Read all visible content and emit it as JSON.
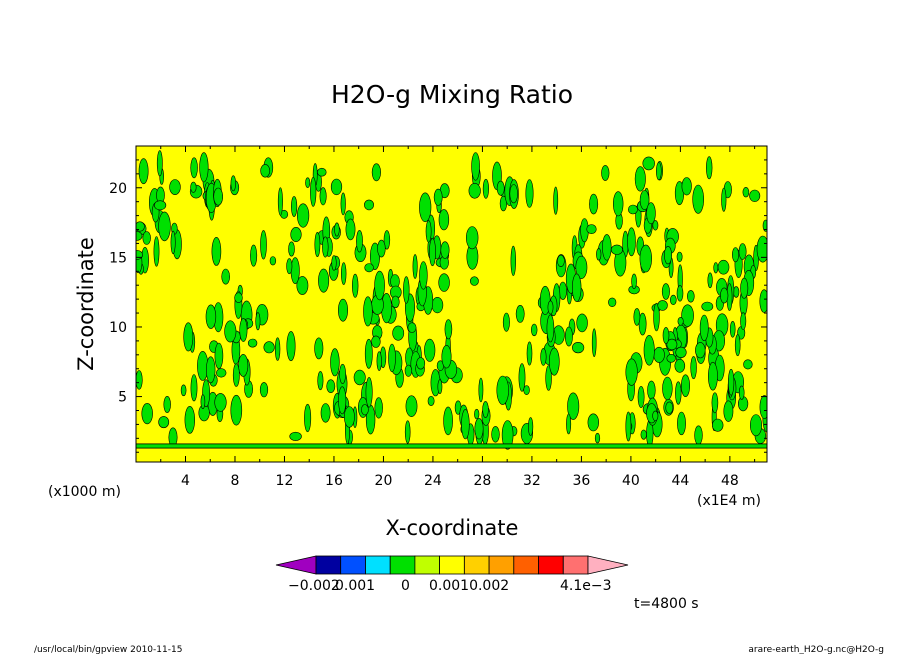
{
  "chart_data": {
    "type": "heatmap",
    "title": "H2O-g Mixing Ratio",
    "xlabel": "X-coordinate",
    "ylabel": "Z-coordinate",
    "x_unit": "(x1E4 m)",
    "y_unit": "(x1000 m)",
    "xlim": [
      0,
      51
    ],
    "ylim": [
      0.3,
      23
    ],
    "x_ticks": [
      "4",
      "8",
      "12",
      "16",
      "20",
      "24",
      "28",
      "32",
      "36",
      "40",
      "44",
      "48"
    ],
    "y_ticks": [
      "5",
      "10",
      "15",
      "20"
    ],
    "time_label": "t=4800 s",
    "background_color": "#ffff00",
    "contour_color": "#00e000",
    "colorbar": {
      "colors": [
        "#a000c0",
        "#0000a0",
        "#0050ff",
        "#00e0ff",
        "#00e000",
        "#c0ff00",
        "#ffff00",
        "#ffd000",
        "#ffa000",
        "#ff6000",
        "#ff0000",
        "#ff7070",
        "#ffb0c0"
      ],
      "labels": [
        "−0.002",
        "0.001",
        "0",
        "0.0010.002",
        "4.1e−3"
      ]
    },
    "mode_band": {
      "z_low": 1.3,
      "z_high": 1.6
    }
  },
  "footer": {
    "left": "/usr/local/bin/gpview   2010-11-15",
    "right": "arare-earth_H2O-g.nc@H2O-g"
  }
}
